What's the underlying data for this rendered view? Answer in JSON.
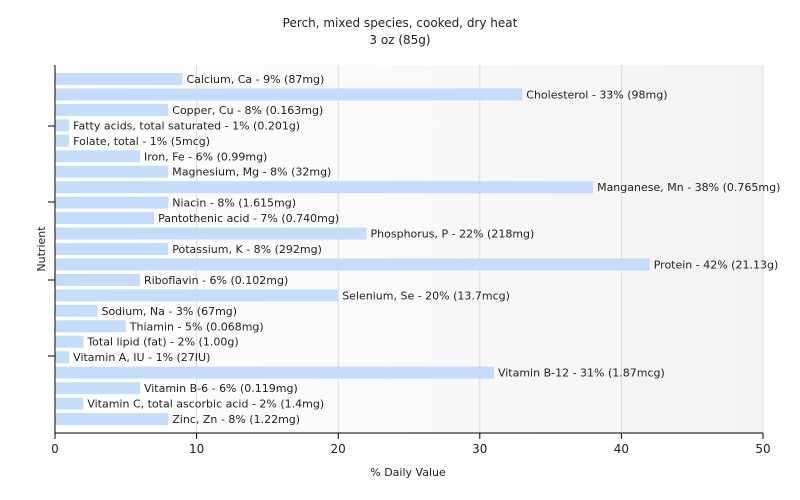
{
  "chart_data": {
    "type": "bar",
    "orientation": "horizontal",
    "title": "Perch, mixed species, cooked, dry heat",
    "subtitle": "3 oz (85g)",
    "xlabel": "% Daily Value",
    "ylabel": "Nutrient",
    "xlim": [
      0,
      50
    ],
    "xticks": [
      0,
      10,
      20,
      30,
      40,
      50
    ],
    "grid": true,
    "bar_color": "#c6dcfb",
    "categories": [
      "Calcium, Ca",
      "Cholesterol",
      "Copper, Cu",
      "Fatty acids, total saturated",
      "Folate, total",
      "Iron, Fe",
      "Magnesium, Mg",
      "Manganese, Mn",
      "Niacin",
      "Pantothenic acid",
      "Phosphorus, P",
      "Potassium, K",
      "Protein",
      "Riboflavin",
      "Selenium, Se",
      "Sodium, Na",
      "Thiamin",
      "Total lipid (fat)",
      "Vitamin A, IU",
      "Vitamin B-12",
      "Vitamin B-6",
      "Vitamin C, total ascorbic acid",
      "Zinc, Zn"
    ],
    "values": [
      9,
      33,
      8,
      1,
      1,
      6,
      8,
      38,
      8,
      7,
      22,
      8,
      42,
      6,
      20,
      3,
      5,
      2,
      1,
      31,
      6,
      2,
      8
    ],
    "labels": [
      "Calcium, Ca - 9% (87mg)",
      "Cholesterol - 33% (98mg)",
      "Copper, Cu - 8% (0.163mg)",
      "Fatty acids, total saturated - 1% (0.201g)",
      "Folate, total - 1% (5mcg)",
      "Iron, Fe - 6% (0.99mg)",
      "Magnesium, Mg - 8% (32mg)",
      "Manganese, Mn - 38% (0.765mg)",
      "Niacin - 8% (1.615mg)",
      "Pantothenic acid - 7% (0.740mg)",
      "Phosphorus, P - 22% (218mg)",
      "Potassium, K - 8% (292mg)",
      "Protein - 42% (21.13g)",
      "Riboflavin - 6% (0.102mg)",
      "Selenium, Se - 20% (13.7mcg)",
      "Sodium, Na - 3% (67mg)",
      "Thiamin - 5% (0.068mg)",
      "Total lipid (fat) - 2% (1.00g)",
      "Vitamin A, IU - 1% (27IU)",
      "Vitamin B-12 - 31% (1.87mcg)",
      "Vitamin B-6 - 6% (0.119mg)",
      "Vitamin C, total ascorbic acid - 2% (1.4mg)",
      "Zinc, Zn - 8% (1.22mg)"
    ]
  }
}
